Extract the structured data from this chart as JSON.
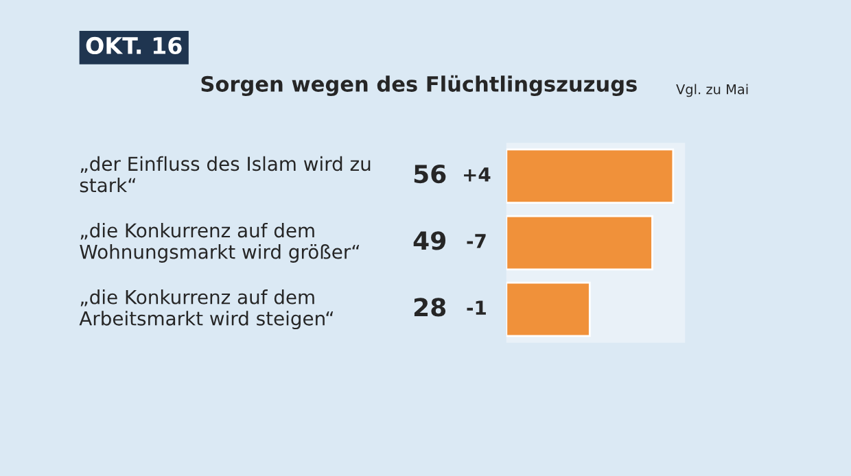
{
  "chart_data": {
    "type": "bar",
    "orientation": "horizontal",
    "title": "Sorgen wegen des Flüchtlingszuzugs",
    "categories": [
      "„der Einfluss des Islam wird zu stark“",
      "„die Konkurrenz auf dem Wohnungsmarkt wird größer“",
      "„die Konkurrenz auf dem Arbeitsmarkt wird steigen“"
    ],
    "values": [
      56,
      49,
      28
    ],
    "color": "#f0913a",
    "data_labels": true,
    "xlim": [
      0,
      60
    ],
    "tick_labels": "y",
    "grid": false,
    "annotations": [
      "OKT. 16",
      "Vgl. zu Mai",
      "+4",
      "-7",
      "-1"
    ]
  }
}
